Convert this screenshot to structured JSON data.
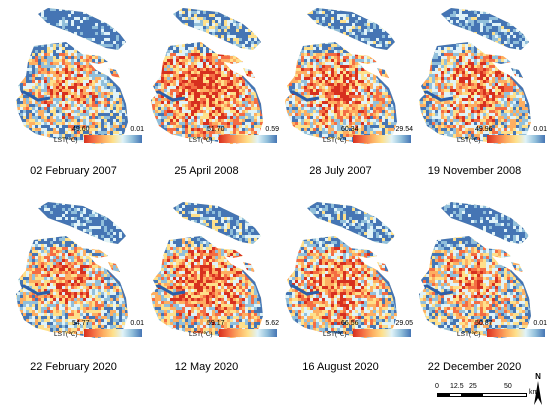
{
  "panels": [
    {
      "date": "02 February 2007",
      "max": "49.60",
      "min": "0.01",
      "legend_title": "LST(℃)",
      "warm": 0.35
    },
    {
      "date": "25 April 2008",
      "max": "51.70",
      "min": "0.59",
      "legend_title": "LST(℃)",
      "warm": 0.6
    },
    {
      "date": "28 July 2007",
      "max": "60.34",
      "min": "29.54",
      "legend_title": "LST(℃)",
      "warm": 0.5
    },
    {
      "date": "19 November 2008",
      "max": "49.96",
      "min": "0.01",
      "legend_title": "LST(℃)",
      "warm": 0.45
    },
    {
      "date": "22 February 2020",
      "max": "54.77",
      "min": "0.01",
      "legend_title": "LST(℃)",
      "warm": 0.4
    },
    {
      "date": "12 May 2020",
      "max": "59.17",
      "min": "5.62",
      "legend_title": "LST(℃)",
      "warm": 0.55
    },
    {
      "date": "16 August 2020",
      "max": "66.56",
      "min": "29.05",
      "legend_title": "LST(℃)",
      "warm": 0.5
    },
    {
      "date": "22 December 2020",
      "max": "50.87",
      "min": "0.01",
      "legend_title": "LST(℃)",
      "warm": 0.35
    }
  ],
  "scale_bar": {
    "labels": [
      "0",
      "12.5",
      "25",
      "50"
    ],
    "unit": "km"
  },
  "north_label": "N",
  "colors": {
    "hot": "#d7301f",
    "warm": "#fdae61",
    "mid": "#fee08b",
    "cool": "#91bfdb",
    "cold": "#4575b4"
  }
}
